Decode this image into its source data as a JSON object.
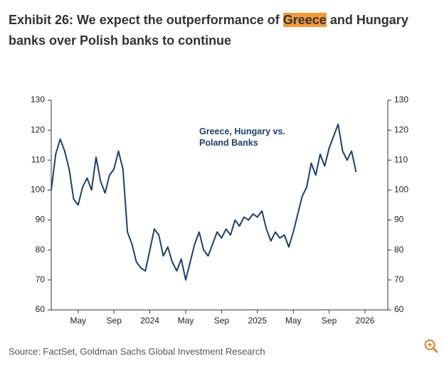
{
  "title_parts": [
    {
      "text": "Exhibit 26: We expect the outperformance of "
    },
    {
      "text": "Greece",
      "highlight": true
    },
    {
      "text": " and Hungary banks over Polish banks to continue"
    }
  ],
  "source": "Source: FactSet, Goldman Sachs Global Investment Research",
  "chart_data": {
    "type": "line",
    "categories": [
      null,
      null,
      null,
      null,
      null,
      null,
      "May",
      null,
      null,
      null,
      null,
      null,
      null,
      null,
      "Sep",
      null,
      null,
      null,
      null,
      null,
      null,
      null,
      "2024",
      null,
      null,
      null,
      null,
      null,
      null,
      null,
      "May",
      null,
      null,
      null,
      null,
      null,
      null,
      null,
      "Sep",
      null,
      null,
      null,
      null,
      null,
      null,
      null,
      "2025",
      null,
      null,
      null,
      null,
      null,
      null,
      null,
      "May",
      null,
      null,
      null,
      null,
      null,
      null,
      null,
      "Sep",
      null,
      null,
      null,
      null,
      null,
      null,
      null,
      "2026"
    ],
    "series": [
      {
        "name": "Greece, Hungary vs. Poland Banks",
        "color": "#1f3f6e",
        "values": [
          100,
          112,
          117,
          113,
          107,
          97,
          95,
          101,
          104,
          100,
          111,
          103,
          99,
          105,
          107,
          113,
          107,
          86,
          82,
          76,
          74,
          73,
          80,
          87,
          85,
          78,
          81,
          76,
          73,
          77,
          70,
          76,
          82,
          86,
          80,
          78,
          82,
          86,
          84,
          87,
          85,
          90,
          88,
          91,
          90,
          92,
          91,
          93,
          87,
          83,
          86,
          84,
          85,
          81,
          86,
          92,
          98,
          101,
          109,
          105,
          112,
          108,
          114,
          118,
          122,
          113,
          110,
          113,
          106,
          null,
          null
        ]
      }
    ],
    "ylim": [
      60,
      130
    ],
    "yticks": [
      60,
      70,
      80,
      90,
      100,
      110,
      120,
      130
    ],
    "y2lim": [
      60,
      130
    ],
    "y2ticks": [
      60,
      70,
      80,
      90,
      100,
      110,
      120,
      130
    ]
  }
}
